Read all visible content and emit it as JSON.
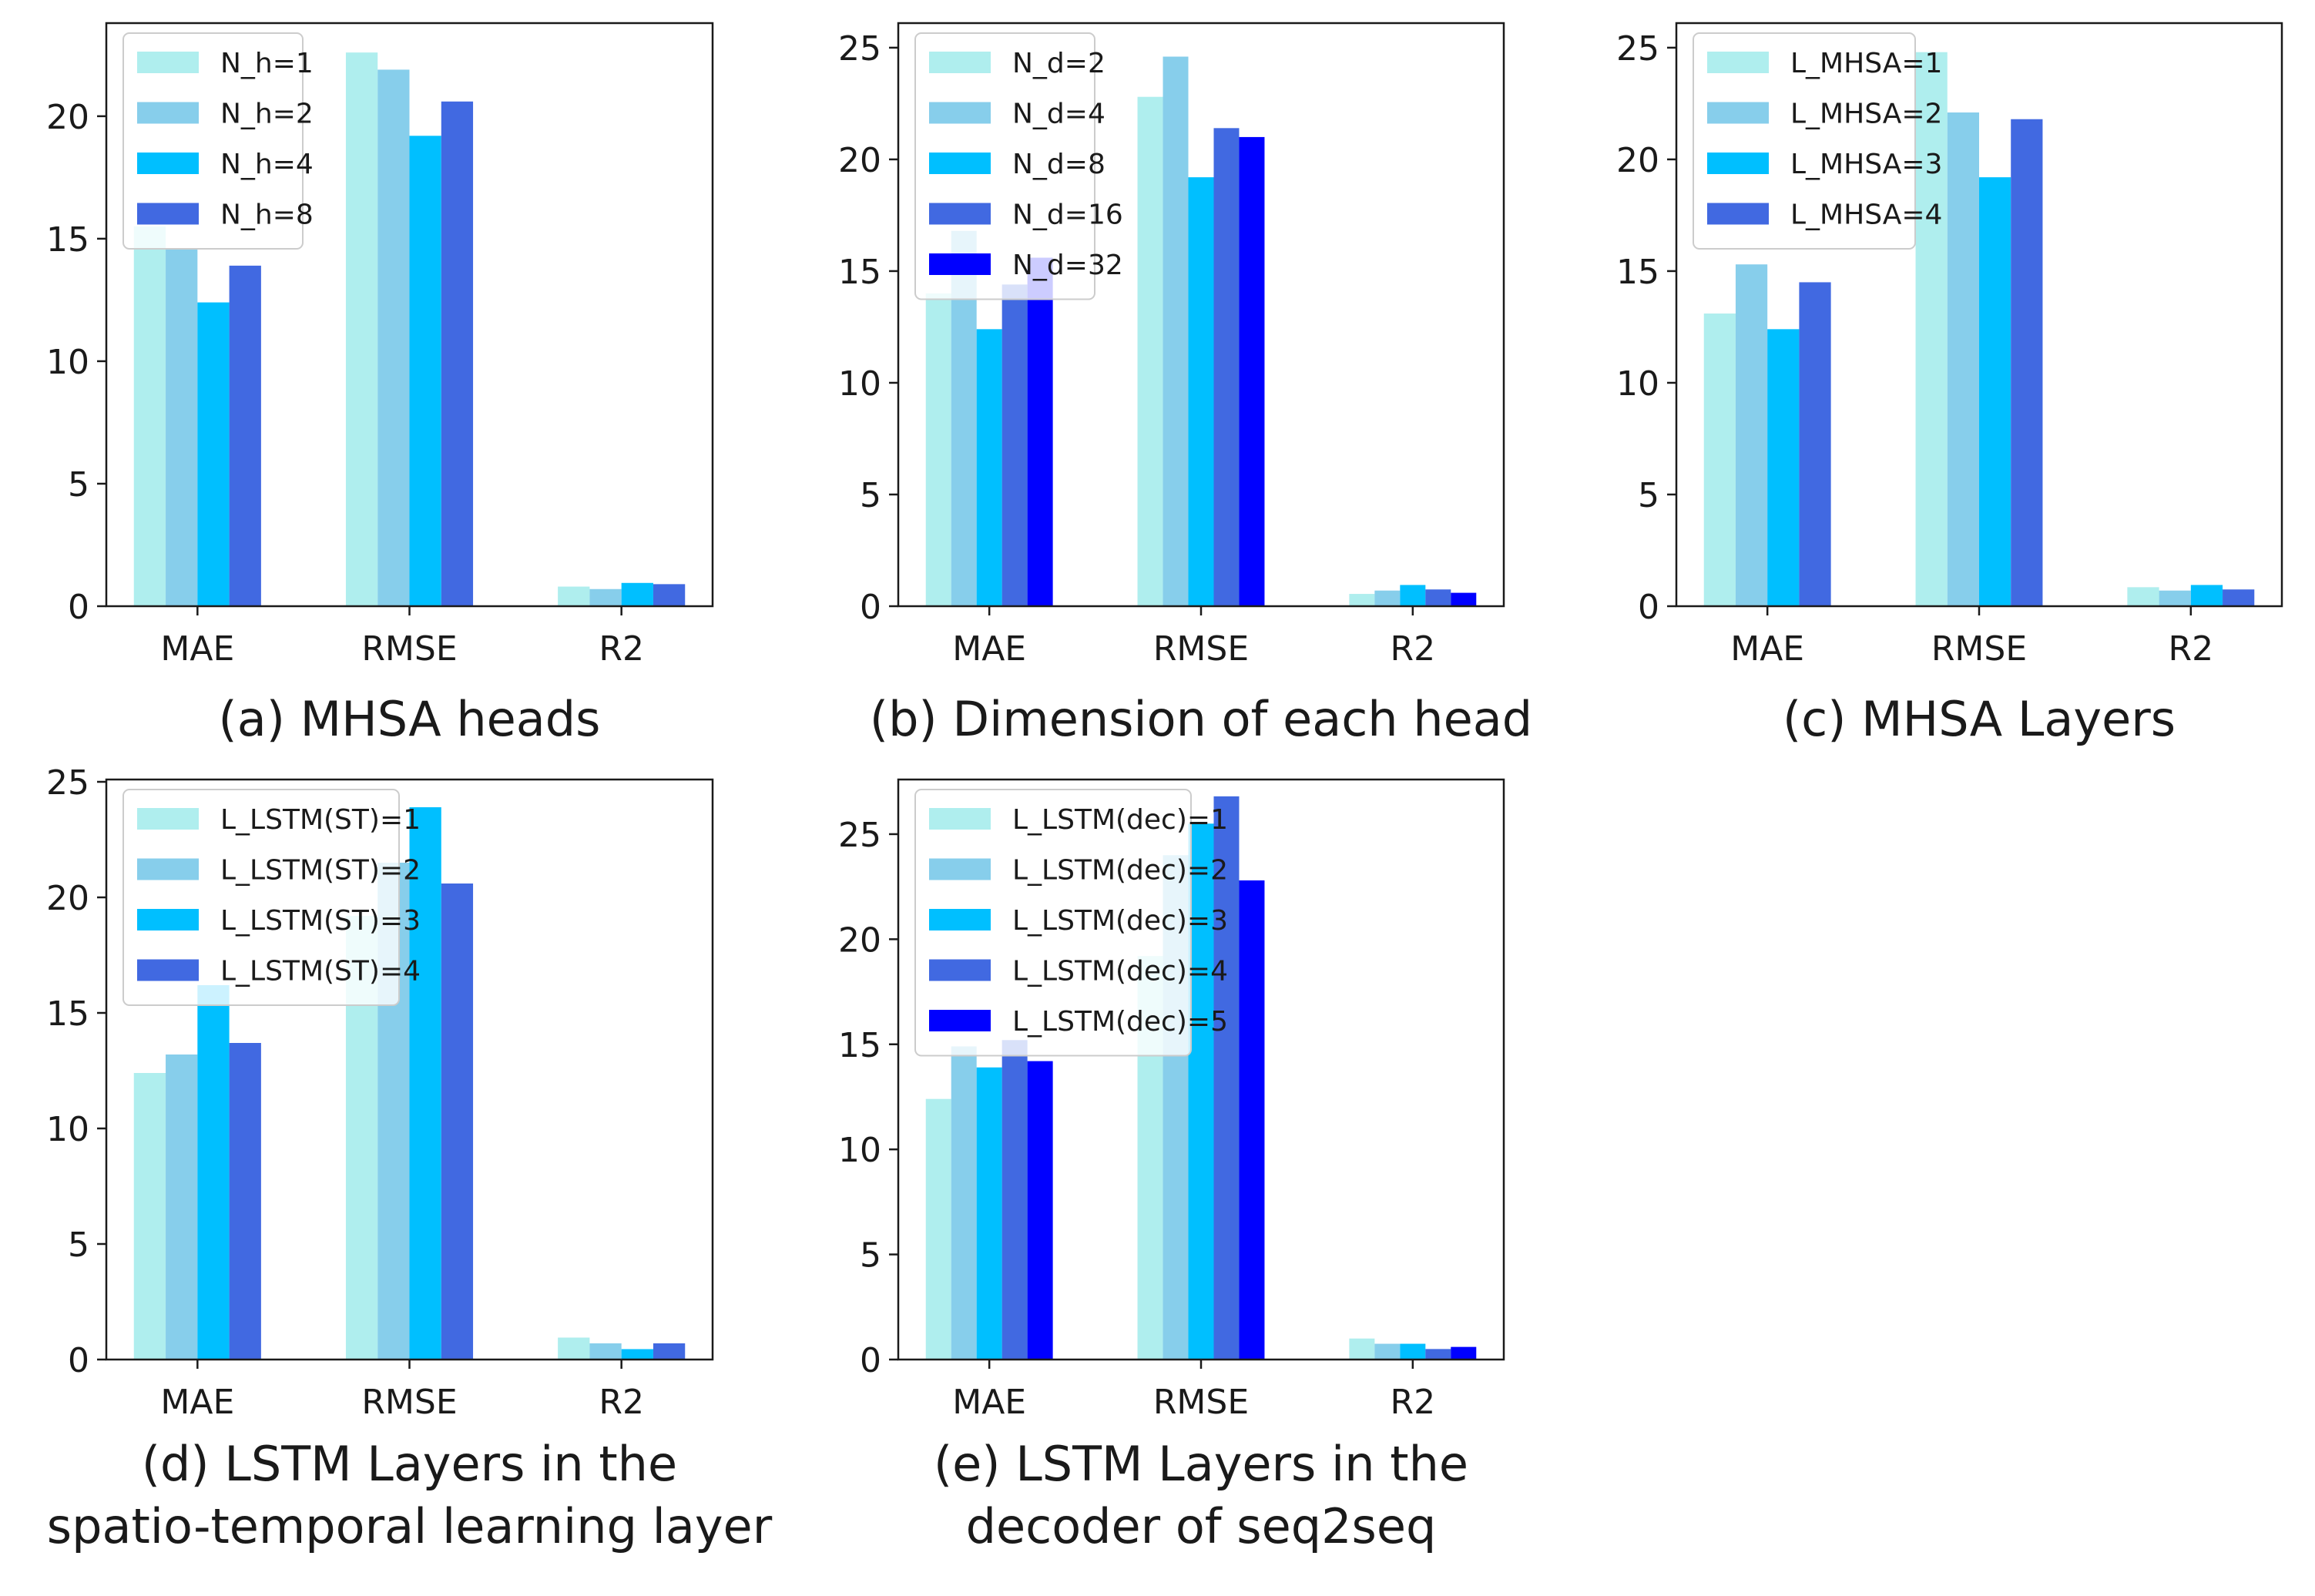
{
  "chart_data": [
    {
      "type": "bar",
      "caption": [
        "(a) MHSA heads"
      ],
      "categories": [
        "MAE",
        "RMSE",
        "R2"
      ],
      "yticks": [
        0,
        5,
        10,
        15,
        20
      ],
      "ylim": [
        0,
        23.8
      ],
      "series": [
        {
          "name": "N_h=1",
          "color": "#afeeee",
          "values": [
            15.5,
            22.6,
            0.8
          ]
        },
        {
          "name": "N_h=2",
          "color": "#87ceeb",
          "values": [
            14.6,
            21.9,
            0.7
          ]
        },
        {
          "name": "N_h=4",
          "color": "#00bfff",
          "values": [
            12.4,
            19.2,
            0.95
          ]
        },
        {
          "name": "N_h=8",
          "color": "#4169e1",
          "values": [
            13.9,
            20.6,
            0.9
          ]
        }
      ]
    },
    {
      "type": "bar",
      "caption": [
        "(b) Dimension of each head"
      ],
      "categories": [
        "MAE",
        "RMSE",
        "R2"
      ],
      "yticks": [
        0,
        5,
        10,
        15,
        20,
        25
      ],
      "ylim": [
        0,
        26.1
      ],
      "series": [
        {
          "name": "N_d=2",
          "color": "#afeeee",
          "values": [
            14.0,
            22.8,
            0.55
          ]
        },
        {
          "name": "N_d=4",
          "color": "#87ceeb",
          "values": [
            16.8,
            24.6,
            0.7
          ]
        },
        {
          "name": "N_d=8",
          "color": "#00bfff",
          "values": [
            12.4,
            19.2,
            0.95
          ]
        },
        {
          "name": "N_d=16",
          "color": "#4169e1",
          "values": [
            14.4,
            21.4,
            0.75
          ]
        },
        {
          "name": "N_d=32",
          "color": "#0000ff",
          "values": [
            15.6,
            21.0,
            0.6
          ]
        }
      ]
    },
    {
      "type": "bar",
      "caption": [
        "(c) MHSA Layers"
      ],
      "categories": [
        "MAE",
        "RMSE",
        "R2"
      ],
      "yticks": [
        0,
        5,
        10,
        15,
        20,
        25
      ],
      "ylim": [
        0,
        26.1
      ],
      "series": [
        {
          "name": "L_MHSA=1",
          "color": "#afeeee",
          "values": [
            13.1,
            24.8,
            0.85
          ]
        },
        {
          "name": "L_MHSA=2",
          "color": "#87ceeb",
          "values": [
            15.3,
            22.1,
            0.7
          ]
        },
        {
          "name": "L_MHSA=3",
          "color": "#00bfff",
          "values": [
            12.4,
            19.2,
            0.95
          ]
        },
        {
          "name": "L_MHSA=4",
          "color": "#4169e1",
          "values": [
            14.5,
            21.8,
            0.75
          ]
        }
      ]
    },
    {
      "type": "bar",
      "caption": [
        "(d) LSTM Layers in the",
        "spatio-temporal learning layer"
      ],
      "categories": [
        "MAE",
        "RMSE",
        "R2"
      ],
      "yticks": [
        0,
        5,
        10,
        15,
        20,
        25
      ],
      "ylim": [
        0,
        25.1
      ],
      "series": [
        {
          "name": "L_LSTM(ST)=1",
          "color": "#afeeee",
          "values": [
            12.4,
            19.2,
            0.95
          ]
        },
        {
          "name": "L_LSTM(ST)=2",
          "color": "#87ceeb",
          "values": [
            13.2,
            21.5,
            0.7
          ]
        },
        {
          "name": "L_LSTM(ST)=3",
          "color": "#00bfff",
          "values": [
            16.2,
            23.9,
            0.45
          ]
        },
        {
          "name": "L_LSTM(ST)=4",
          "color": "#4169e1",
          "values": [
            13.7,
            20.6,
            0.7
          ]
        }
      ]
    },
    {
      "type": "bar",
      "caption": [
        "(e) LSTM Layers in the",
        "decoder of seq2seq"
      ],
      "categories": [
        "MAE",
        "RMSE",
        "R2"
      ],
      "yticks": [
        0,
        5,
        10,
        15,
        20,
        25
      ],
      "ylim": [
        0,
        27.6
      ],
      "series": [
        {
          "name": "L_LSTM(dec)=1",
          "color": "#afeeee",
          "values": [
            12.4,
            19.2,
            1.0
          ]
        },
        {
          "name": "L_LSTM(dec)=2",
          "color": "#87ceeb",
          "values": [
            14.9,
            24.0,
            0.75
          ]
        },
        {
          "name": "L_LSTM(dec)=3",
          "color": "#00bfff",
          "values": [
            13.9,
            25.5,
            0.75
          ]
        },
        {
          "name": "L_LSTM(dec)=4",
          "color": "#4169e1",
          "values": [
            15.2,
            26.8,
            0.5
          ]
        },
        {
          "name": "L_LSTM(dec)=5",
          "color": "#0000ff",
          "values": [
            14.2,
            22.8,
            0.6
          ]
        }
      ]
    }
  ]
}
